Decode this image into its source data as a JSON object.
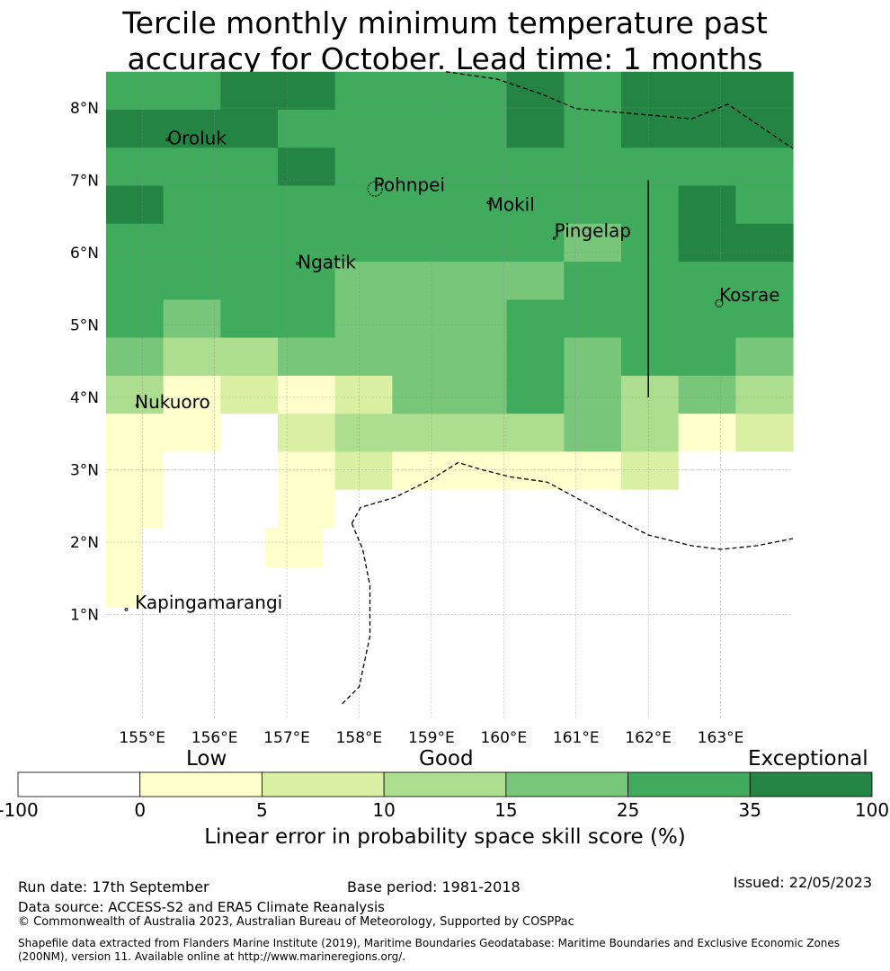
{
  "title_line1": "Tercile monthly minimum temperature past",
  "title_line2": "accuracy for October. Lead time: 1 months",
  "colors": {
    "c0": "#ffffff",
    "c1": "#ffffcc",
    "c2": "#d9f0a3",
    "c3": "#addd8e",
    "c4": "#78c679",
    "c5": "#41ab5d",
    "c6": "#238443"
  },
  "grid_extent": {
    "lon_west": 154.5,
    "lon_east": 164.0,
    "lat_top": 8.5,
    "lat_bottom": 2.2,
    "cell_deg": 0.833,
    "rows": 12,
    "cols": 12
  },
  "grid_levels": [
    [
      5,
      5,
      6,
      6,
      5,
      5,
      5,
      6,
      5,
      6,
      6,
      6
    ],
    [
      6,
      6,
      6,
      5,
      5,
      5,
      5,
      6,
      5,
      6,
      6,
      6
    ],
    [
      5,
      5,
      5,
      6,
      5,
      5,
      5,
      5,
      5,
      5,
      5,
      5
    ],
    [
      6,
      5,
      5,
      5,
      5,
      5,
      5,
      5,
      5,
      5,
      6,
      5
    ],
    [
      5,
      5,
      5,
      5,
      5,
      5,
      5,
      5,
      4,
      5,
      6,
      6
    ],
    [
      5,
      5,
      5,
      5,
      4,
      4,
      4,
      4,
      5,
      5,
      5,
      5
    ],
    [
      5,
      4,
      5,
      5,
      4,
      4,
      4,
      5,
      5,
      5,
      5,
      5
    ],
    [
      4,
      3,
      3,
      4,
      4,
      4,
      4,
      5,
      4,
      5,
      5,
      4
    ],
    [
      3,
      1,
      2,
      1,
      2,
      4,
      4,
      5,
      4,
      3,
      4,
      3
    ],
    [
      1,
      1,
      0,
      2,
      3,
      3,
      3,
      3,
      4,
      3,
      1,
      2
    ],
    [
      1,
      0,
      0,
      1,
      2,
      1,
      1,
      1,
      1,
      2,
      0,
      0
    ],
    [
      1,
      0,
      0,
      1,
      0,
      0,
      0,
      0,
      0,
      0,
      0,
      0
    ]
  ],
  "extra_cells": [
    {
      "lon0": 154.5,
      "lon1": 155.0,
      "lat0": 1.1,
      "lat1": 2.2,
      "level": 1
    },
    {
      "lon0": 156.7,
      "lon1": 157.5,
      "lat0": 1.65,
      "lat1": 2.2,
      "level": 1
    }
  ],
  "lat_ticks": [
    {
      "value": 8,
      "label": "8°N"
    },
    {
      "value": 7,
      "label": "7°N"
    },
    {
      "value": 6,
      "label": "6°N"
    },
    {
      "value": 5,
      "label": "5°N"
    },
    {
      "value": 4,
      "label": "4°N"
    },
    {
      "value": 3,
      "label": "3°N"
    },
    {
      "value": 2,
      "label": "2°N"
    },
    {
      "value": 1,
      "label": "1°N"
    }
  ],
  "lon_ticks": [
    {
      "value": 155,
      "label": "155°E"
    },
    {
      "value": 156,
      "label": "156°E"
    },
    {
      "value": 157,
      "label": "157°E"
    },
    {
      "value": 158,
      "label": "158°E"
    },
    {
      "value": 159,
      "label": "159°E"
    },
    {
      "value": 160,
      "label": "160°E"
    },
    {
      "value": 161,
      "label": "161°E"
    },
    {
      "value": 162,
      "label": "162°E"
    },
    {
      "value": 163,
      "label": "163°E"
    }
  ],
  "places": [
    {
      "name": "Oroluk",
      "lon": 155.35,
      "lat": 7.5
    },
    {
      "name": "Pohnpei",
      "lon": 158.2,
      "lat": 6.85
    },
    {
      "name": "Mokil",
      "lon": 159.78,
      "lat": 6.58
    },
    {
      "name": "Pingelap",
      "lon": 160.7,
      "lat": 6.22
    },
    {
      "name": "Ngatik",
      "lon": 157.15,
      "lat": 5.78
    },
    {
      "name": "Kosrae",
      "lon": 162.98,
      "lat": 5.33
    },
    {
      "name": "Nukuoro",
      "lon": 154.9,
      "lat": 3.85
    },
    {
      "name": "Kapingamarangi",
      "lon": 154.9,
      "lat": 1.08
    }
  ],
  "boundary_lines": [
    [
      [
        159.2,
        8.5
      ],
      [
        159.9,
        8.4
      ],
      [
        160.5,
        8.2
      ],
      [
        161.0,
        7.99
      ],
      [
        162.6,
        7.85
      ],
      [
        163.1,
        8.05
      ],
      [
        164.0,
        7.44
      ]
    ],
    [
      [
        157.9,
        2.26
      ],
      [
        158.02,
        2.48
      ],
      [
        158.5,
        2.62
      ],
      [
        159.0,
        2.87
      ],
      [
        159.37,
        3.1
      ],
      [
        159.7,
        3.0
      ],
      [
        160.1,
        2.9
      ],
      [
        160.6,
        2.83
      ],
      [
        161.4,
        2.4
      ],
      [
        162.0,
        2.1
      ],
      [
        162.6,
        1.95
      ],
      [
        163.0,
        1.9
      ],
      [
        163.5,
        1.95
      ],
      [
        164.0,
        2.05
      ]
    ],
    [
      [
        157.9,
        2.26
      ],
      [
        158.05,
        1.9
      ],
      [
        158.15,
        1.4
      ],
      [
        158.15,
        0.7
      ],
      [
        158.0,
        0.0
      ],
      [
        157.75,
        -0.25
      ]
    ]
  ],
  "solid_lines": [
    [
      [
        162.0,
        7.0
      ],
      [
        162.0,
        4.0
      ]
    ]
  ],
  "island_marks": [
    {
      "lon": 158.22,
      "lat": 6.88,
      "size": "large"
    },
    {
      "lon": 159.79,
      "lat": 6.69,
      "size": "small"
    },
    {
      "lon": 160.7,
      "lat": 6.2,
      "size": "small"
    },
    {
      "lon": 157.15,
      "lat": 5.85,
      "size": "small"
    },
    {
      "lon": 162.98,
      "lat": 5.3,
      "size": "medium"
    },
    {
      "lon": 155.35,
      "lat": 7.56,
      "size": "small"
    },
    {
      "lon": 154.93,
      "lat": 3.89,
      "size": "small"
    },
    {
      "lon": 154.78,
      "lat": 1.07,
      "size": "small"
    }
  ],
  "legend": {
    "headings": {
      "low": "Low",
      "good": "Good",
      "exceptional": "Exceptional"
    },
    "tick_labels": [
      "-100",
      "0",
      "5",
      "10",
      "15",
      "25",
      "35",
      "100"
    ],
    "title": "Linear error in probability space skill score (%)"
  },
  "footer": {
    "run_date": "Run date: 17th September",
    "base_period": "Base period: 1981-2018",
    "issued": "Issued: 22/05/2023",
    "data_source": "Data source: ACCESS-S2 and ERA5 Climate Reanalysis",
    "copyright": "© Commonwealth of Australia 2023, Australian Bureau of Meteorology, Supported by COSPPac",
    "shapefile": "Shapefile data extracted from Flanders Marine Institute (2019), Maritime Boundaries Geodatabase: Maritime Boundaries and Exclusive Economic Zones (200NM), version 11. Available online at http://www.marineregions.org/."
  }
}
